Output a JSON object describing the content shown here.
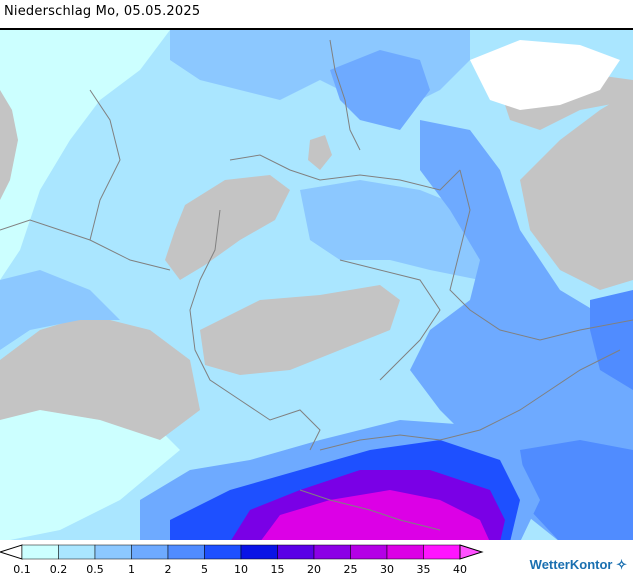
{
  "header": {
    "title": "Niederschlag Mo, 05.05.2025"
  },
  "legend": {
    "labels": [
      "0.1",
      "0.2",
      "0.5",
      "1",
      "2",
      "5",
      "10",
      "15",
      "20",
      "25",
      "30",
      "35",
      "40"
    ],
    "colors": [
      "#ffffff",
      "#ccffff",
      "#aae6ff",
      "#8cc8ff",
      "#6eaaff",
      "#508cff",
      "#1e50ff",
      "#0a14e6",
      "#5a00e6",
      "#8c00e6",
      "#b400e6",
      "#dc00e6",
      "#ff14ff",
      "#ff50ff"
    ]
  },
  "brand": {
    "name": "WetterKontor"
  },
  "map_colors": {
    "land_no_data": "#c4c4c4",
    "sea": "#ccffff",
    "light": "#aae6ff",
    "mid": "#8cc8ff",
    "blue": "#6eaaff",
    "strong": "#508cff",
    "deep": "#1e50ff",
    "purple": "#7a00e6",
    "magenta": "#dc00e6",
    "border": "#808080",
    "white": "#ffffff"
  }
}
